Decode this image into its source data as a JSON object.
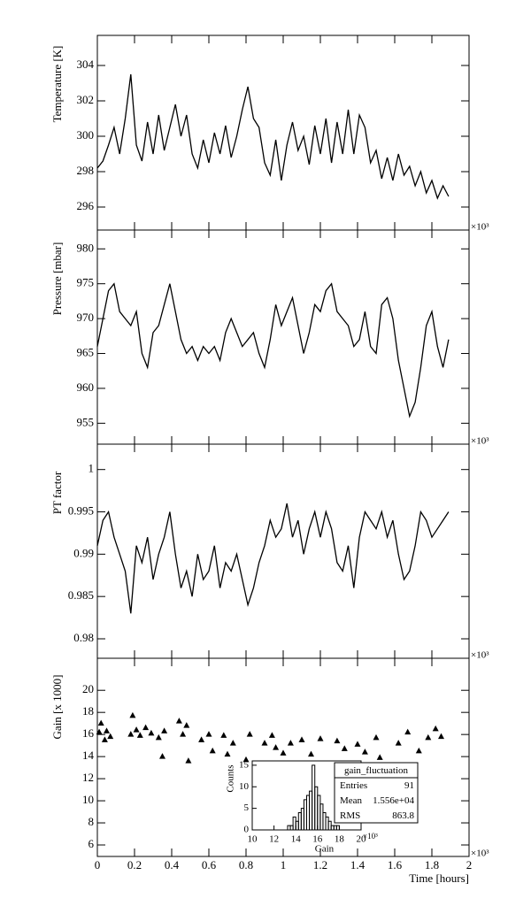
{
  "chart_data": [
    {
      "type": "line",
      "ylabel": "Temperature [K]",
      "x_multiplier": "×10³",
      "xlim": [
        0,
        2
      ],
      "xticks": [
        0,
        0.2,
        0.4,
        0.6,
        0.8,
        1,
        1.2,
        1.4,
        1.6,
        1.8,
        2
      ],
      "ylim": [
        294.7,
        305.7
      ],
      "yticks": [
        296,
        298,
        300,
        302,
        304
      ],
      "series": [
        {
          "color": "#000000",
          "x": [
            0,
            0.03,
            0.06,
            0.09,
            0.12,
            0.15,
            0.18,
            0.21,
            0.24,
            0.27,
            0.3,
            0.33,
            0.36,
            0.39,
            0.42,
            0.45,
            0.48,
            0.51,
            0.54,
            0.57,
            0.6,
            0.63,
            0.66,
            0.69,
            0.72,
            0.75,
            0.78,
            0.81,
            0.84,
            0.87,
            0.9,
            0.93,
            0.96,
            0.99,
            1.02,
            1.05,
            1.08,
            1.11,
            1.14,
            1.17,
            1.2,
            1.23,
            1.26,
            1.29,
            1.32,
            1.35,
            1.38,
            1.41,
            1.44,
            1.47,
            1.5,
            1.53,
            1.56,
            1.59,
            1.62,
            1.65,
            1.68,
            1.71,
            1.74,
            1.77,
            1.8,
            1.83,
            1.86,
            1.89
          ],
          "values": [
            298.2,
            298.6,
            299.5,
            300.5,
            299.0,
            301.0,
            303.5,
            299.5,
            298.6,
            300.8,
            299.0,
            301.2,
            299.2,
            300.5,
            301.8,
            300.0,
            301.2,
            299.0,
            298.2,
            299.8,
            298.5,
            300.2,
            299.0,
            300.6,
            298.8,
            300.0,
            301.5,
            302.8,
            301.0,
            300.5,
            298.5,
            297.8,
            299.8,
            297.5,
            299.5,
            300.8,
            299.2,
            300.0,
            298.4,
            300.6,
            299.0,
            301.0,
            298.5,
            300.8,
            299.0,
            301.5,
            299.0,
            301.2,
            300.5,
            298.5,
            299.2,
            297.6,
            298.8,
            297.5,
            299.0,
            297.8,
            298.3,
            297.2,
            298.0,
            296.8,
            297.5,
            296.5,
            297.2,
            296.6
          ]
        }
      ]
    },
    {
      "type": "line",
      "ylabel": "Pressure [mbar]",
      "x_multiplier": "×10³",
      "xlim": [
        0,
        2
      ],
      "xticks": [
        0,
        0.2,
        0.4,
        0.6,
        0.8,
        1,
        1.2,
        1.4,
        1.6,
        1.8,
        2
      ],
      "ylim": [
        952,
        982.7
      ],
      "yticks": [
        955,
        960,
        965,
        970,
        975,
        980
      ],
      "series": [
        {
          "color": "#000000",
          "x": [
            0,
            0.03,
            0.06,
            0.09,
            0.12,
            0.15,
            0.18,
            0.21,
            0.24,
            0.27,
            0.3,
            0.33,
            0.36,
            0.39,
            0.42,
            0.45,
            0.48,
            0.51,
            0.54,
            0.57,
            0.6,
            0.63,
            0.66,
            0.69,
            0.72,
            0.75,
            0.78,
            0.81,
            0.84,
            0.87,
            0.9,
            0.93,
            0.96,
            0.99,
            1.02,
            1.05,
            1.08,
            1.11,
            1.14,
            1.17,
            1.2,
            1.23,
            1.26,
            1.29,
            1.32,
            1.35,
            1.38,
            1.41,
            1.44,
            1.47,
            1.5,
            1.53,
            1.56,
            1.59,
            1.62,
            1.65,
            1.68,
            1.71,
            1.74,
            1.77,
            1.8,
            1.83,
            1.86,
            1.89
          ],
          "values": [
            966,
            970,
            974,
            975,
            971,
            970,
            969,
            971,
            965,
            963,
            968,
            969,
            972,
            975,
            971,
            967,
            965,
            966,
            964,
            966,
            965,
            966,
            964,
            968,
            970,
            968,
            966,
            967,
            968,
            965,
            963,
            967,
            972,
            969,
            971,
            973,
            969,
            965,
            968,
            972,
            971,
            974,
            975,
            971,
            970,
            969,
            966,
            967,
            971,
            966,
            965,
            972,
            973,
            970,
            964,
            960,
            956,
            958,
            963,
            969,
            971,
            966,
            963,
            967
          ]
        }
      ]
    },
    {
      "type": "line",
      "ylabel": "PT factor",
      "x_multiplier": "×10³",
      "xlim": [
        0,
        2
      ],
      "xticks": [
        0,
        0.2,
        0.4,
        0.6,
        0.8,
        1,
        1.2,
        1.4,
        1.6,
        1.8,
        2
      ],
      "ylim": [
        0.9777,
        1.003
      ],
      "yticks": [
        0.98,
        0.985,
        0.99,
        0.995,
        1
      ],
      "series": [
        {
          "color": "#000000",
          "x": [
            0,
            0.03,
            0.06,
            0.09,
            0.12,
            0.15,
            0.18,
            0.21,
            0.24,
            0.27,
            0.3,
            0.33,
            0.36,
            0.39,
            0.42,
            0.45,
            0.48,
            0.51,
            0.54,
            0.57,
            0.6,
            0.63,
            0.66,
            0.69,
            0.72,
            0.75,
            0.78,
            0.81,
            0.84,
            0.87,
            0.9,
            0.93,
            0.96,
            0.99,
            1.02,
            1.05,
            1.08,
            1.11,
            1.14,
            1.17,
            1.2,
            1.23,
            1.26,
            1.29,
            1.32,
            1.35,
            1.38,
            1.41,
            1.44,
            1.47,
            1.5,
            1.53,
            1.56,
            1.59,
            1.62,
            1.65,
            1.68,
            1.71,
            1.74,
            1.77,
            1.8,
            1.83,
            1.86,
            1.89
          ],
          "values": [
            0.991,
            0.994,
            0.995,
            0.992,
            0.99,
            0.988,
            0.983,
            0.991,
            0.989,
            0.992,
            0.987,
            0.99,
            0.992,
            0.995,
            0.99,
            0.986,
            0.988,
            0.985,
            0.99,
            0.987,
            0.988,
            0.991,
            0.986,
            0.989,
            0.988,
            0.99,
            0.987,
            0.984,
            0.986,
            0.989,
            0.991,
            0.994,
            0.992,
            0.993,
            0.996,
            0.992,
            0.994,
            0.99,
            0.993,
            0.995,
            0.992,
            0.995,
            0.993,
            0.989,
            0.988,
            0.991,
            0.986,
            0.992,
            0.995,
            0.994,
            0.993,
            0.995,
            0.992,
            0.994,
            0.99,
            0.987,
            0.988,
            0.991,
            0.995,
            0.994,
            0.992,
            0.993,
            0.994,
            0.995
          ]
        }
      ]
    },
    {
      "type": "scatter",
      "ylabel": "Gain [x 1000]",
      "xlabel": "Time [hours]",
      "x_multiplier": "×10³",
      "xlim": [
        0,
        2
      ],
      "xticks": [
        0,
        0.2,
        0.4,
        0.6,
        0.8,
        1,
        1.2,
        1.4,
        1.6,
        1.8,
        2
      ],
      "ylim": [
        4.96,
        22.9
      ],
      "yticks": [
        6,
        8,
        10,
        12,
        14,
        16,
        18,
        20
      ],
      "series": [
        {
          "color": "#000000",
          "x": [
            0.01,
            0.02,
            0.04,
            0.05,
            0.07,
            0.18,
            0.19,
            0.21,
            0.23,
            0.26,
            0.29,
            0.33,
            0.35,
            0.36,
            0.44,
            0.46,
            0.48,
            0.49,
            0.56,
            0.6,
            0.62,
            0.68,
            0.7,
            0.73,
            0.8,
            0.82,
            0.9,
            0.94,
            0.96,
            1.0,
            1.04,
            1.1,
            1.15,
            1.2,
            1.29,
            1.33,
            1.4,
            1.44,
            1.5,
            1.52,
            1.62,
            1.67,
            1.73,
            1.78,
            1.82,
            1.85
          ],
          "values": [
            16.2,
            17,
            15.5,
            16.3,
            15.8,
            16,
            17.7,
            16.4,
            15.9,
            16.6,
            16.1,
            15.7,
            14,
            16.3,
            17.2,
            16,
            16.8,
            13.6,
            15.5,
            16,
            14.5,
            15.9,
            14.2,
            15.2,
            13.7,
            16,
            15.2,
            15.9,
            14.8,
            14.3,
            15.2,
            15.5,
            14.2,
            15.6,
            15.4,
            14.7,
            15.1,
            14.4,
            15.7,
            13.9,
            15.2,
            16.2,
            14.5,
            15.7,
            16.5,
            15.8
          ]
        }
      ]
    },
    {
      "type": "histogram",
      "xlabel": "Gain",
      "ylabel": "Counts",
      "x_multiplier": "×10³",
      "xlim": [
        10,
        20
      ],
      "xticks": [
        10,
        12,
        14,
        16,
        18,
        20
      ],
      "ylim": [
        0,
        16
      ],
      "yticks": [
        0,
        5,
        10,
        15
      ],
      "color": "#000000",
      "bins": [
        10,
        10.25,
        10.5,
        10.75,
        11,
        11.25,
        11.5,
        11.75,
        12,
        12.25,
        12.5,
        12.75,
        13,
        13.25,
        13.5,
        13.75,
        14,
        14.25,
        14.5,
        14.75,
        15,
        15.25,
        15.5,
        15.75,
        16,
        16.25,
        16.5,
        16.75,
        17,
        17.25,
        17.5,
        17.75,
        18,
        18.25,
        18.5,
        18.75,
        19,
        19.25,
        19.5,
        19.75,
        20
      ],
      "counts": [
        0,
        0,
        0,
        0,
        0,
        0,
        0,
        0,
        0,
        0,
        0,
        0,
        0,
        1,
        1,
        3,
        2,
        4,
        5,
        7,
        8,
        9,
        15,
        10,
        8,
        6,
        4,
        3,
        2,
        1,
        1,
        1,
        0,
        0,
        0,
        0,
        0,
        0,
        0,
        0
      ],
      "stats": {
        "title": "gain_fluctuation",
        "rows": [
          [
            "Entries",
            "91"
          ],
          [
            "Mean",
            "1.556e+04"
          ],
          [
            "RMS",
            "863.8"
          ]
        ]
      }
    }
  ]
}
